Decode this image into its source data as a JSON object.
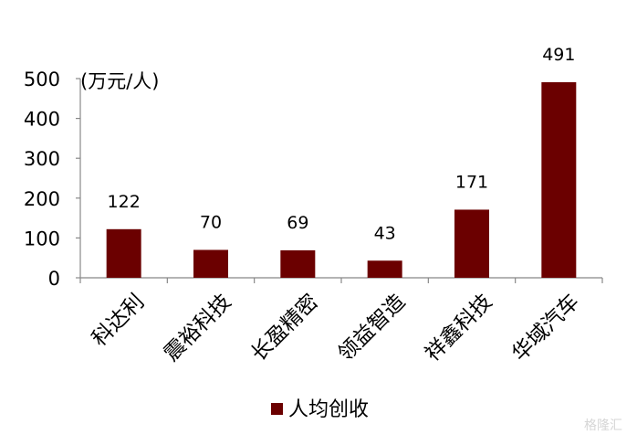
{
  "chart_data": {
    "type": "bar",
    "categories": [
      "科达利",
      "震裕科技",
      "长盈精密",
      "领益智造",
      "祥鑫科技",
      "华域汽车"
    ],
    "series": [
      {
        "name": "人均创收",
        "values": [
          122,
          70,
          69,
          43,
          171,
          491
        ]
      }
    ],
    "data_labels": [
      "122",
      "70",
      "69",
      "43",
      "171",
      "491"
    ],
    "ylim": [
      0,
      500
    ],
    "yticks": [
      0,
      100,
      200,
      300,
      400,
      500
    ],
    "ylabel": "(万元/人)",
    "xlabel": "",
    "title": "",
    "grid": false,
    "legend_position": "bottom",
    "bar_color": "#6b0000"
  },
  "watermark": "格隆汇"
}
